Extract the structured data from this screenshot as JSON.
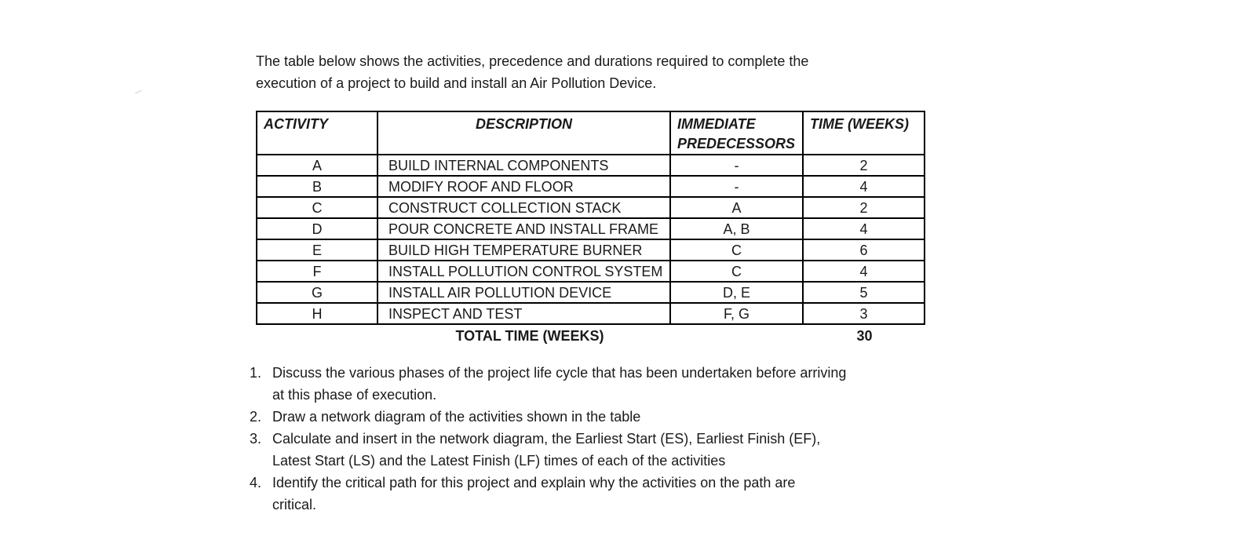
{
  "colors": {
    "text": "#1a1a1a",
    "border": "#000000",
    "background": "#ffffff"
  },
  "intro": {
    "lines": [
      "The table below shows the activities, precedence and durations required to complete the",
      "execution of a project to build and install an Air Pollution Device."
    ]
  },
  "table": {
    "headers": {
      "activity": "ACTIVITY",
      "description": "DESCRIPTION",
      "predecessors": "IMMEDIATE PREDECESSORS",
      "time": "TIME (WEEKS)"
    },
    "rows": [
      {
        "activity": "A",
        "description": "BUILD INTERNAL COMPONENTS",
        "predecessors": "-",
        "time": "2"
      },
      {
        "activity": "B",
        "description": "MODIFY ROOF AND FLOOR",
        "predecessors": "-",
        "time": "4"
      },
      {
        "activity": "C",
        "description": "CONSTRUCT COLLECTION STACK",
        "predecessors": "A",
        "time": "2"
      },
      {
        "activity": "D",
        "description": "POUR CONCRETE AND INSTALL FRAME",
        "predecessors": "A, B",
        "time": "4"
      },
      {
        "activity": "E",
        "description": "BUILD HIGH TEMPERATURE BURNER",
        "predecessors": "C",
        "time": "6"
      },
      {
        "activity": "F",
        "description": "INSTALL POLLUTION CONTROL SYSTEM",
        "predecessors": "C",
        "time": "4"
      },
      {
        "activity": "G",
        "description": "INSTALL AIR POLLUTION DEVICE",
        "predecessors": "D, E",
        "time": "5"
      },
      {
        "activity": "H",
        "description": "INSPECT AND TEST",
        "predecessors": "F, G",
        "time": "3"
      }
    ],
    "total_label": "TOTAL TIME (WEEKS)",
    "total_value": "30"
  },
  "questions": [
    {
      "number": "1.",
      "lines": [
        "Discuss the various phases of the project life cycle that has been undertaken before arriving",
        "at this phase of execution."
      ]
    },
    {
      "number": "2.",
      "lines": [
        "Draw a network diagram of the activities shown in the table"
      ]
    },
    {
      "number": "3.",
      "lines": [
        "Calculate and insert in the network diagram, the Earliest Start (ES), Earliest Finish (EF),",
        "Latest Start (LS) and the Latest Finish (LF) times of each of the activities"
      ]
    },
    {
      "number": "4.",
      "lines": [
        "Identify the critical path for this project and explain why the activities on the path are",
        "critical."
      ]
    }
  ]
}
